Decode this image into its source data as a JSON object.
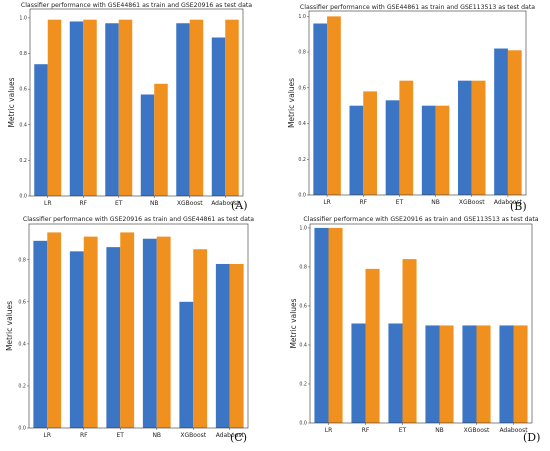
{
  "colors": {
    "series_a": "#3b75c4",
    "series_b": "#f0901e"
  },
  "chart_data": [
    {
      "type": "bar",
      "panel_label": "(A)",
      "title": "Classifier performance with GSE44861 as train and GSE20916 as test data",
      "xlabel": "",
      "ylabel": "Metric values",
      "ylim": [
        0,
        1.05
      ],
      "yticks": [
        "0.0",
        "0.2",
        "0.4",
        "0.6",
        "0.8",
        "1.0"
      ],
      "categories": [
        "LR",
        "RF",
        "ET",
        "NB",
        "XGBoost",
        "Adaboost"
      ],
      "series": [
        {
          "values": [
            0.74,
            0.98,
            0.97,
            0.57,
            0.97,
            0.89
          ]
        },
        {
          "values": [
            0.99,
            0.99,
            0.99,
            0.63,
            0.99,
            0.99
          ]
        }
      ]
    },
    {
      "type": "bar",
      "panel_label": "(B)",
      "title": "Classifier performance with GSE44861 as train and GSE113513 as test data",
      "xlabel": "",
      "ylabel": "Metric values",
      "ylim": [
        0,
        1.03
      ],
      "yticks": [
        "0.0",
        "0.2",
        "0.4",
        "0.6",
        "0.8",
        "1.0"
      ],
      "categories": [
        "LR",
        "RF",
        "ET",
        "NB",
        "XGBoost",
        "Adaboost"
      ],
      "series": [
        {
          "values": [
            0.96,
            0.5,
            0.53,
            0.5,
            0.64,
            0.82
          ]
        },
        {
          "values": [
            1.0,
            0.58,
            0.64,
            0.5,
            0.64,
            0.81
          ]
        }
      ]
    },
    {
      "type": "bar",
      "panel_label": "(C)",
      "title": "Classifier performance with GSE20916 as train and GSE44861 as test data",
      "xlabel": "",
      "ylabel": "Metric values",
      "ylim": [
        0,
        0.97
      ],
      "yticks": [
        "0.0",
        "0.2",
        "0.4",
        "0.6",
        "0.8"
      ],
      "categories": [
        "LR",
        "RF",
        "ET",
        "NB",
        "XGBoost",
        "Adaboost"
      ],
      "series": [
        {
          "values": [
            0.89,
            0.84,
            0.86,
            0.9,
            0.6,
            0.78
          ]
        },
        {
          "values": [
            0.93,
            0.91,
            0.93,
            0.91,
            0.85,
            0.78
          ]
        }
      ]
    },
    {
      "type": "bar",
      "panel_label": "(D)",
      "title": "Classifier performance with GSE20916 as train and GSE113513 as test data",
      "xlabel": "",
      "ylabel": "Metric values",
      "ylim": [
        0,
        1.02
      ],
      "yticks": [
        "0.0",
        "0.2",
        "0.4",
        "0.6",
        "0.8",
        "1.0"
      ],
      "categories": [
        "LR",
        "RF",
        "ET",
        "NB",
        "XGBoost",
        "Adaboost"
      ],
      "series": [
        {
          "values": [
            1.0,
            0.51,
            0.51,
            0.5,
            0.5,
            0.5
          ]
        },
        {
          "values": [
            1.0,
            0.79,
            0.84,
            0.5,
            0.5,
            0.5
          ]
        }
      ]
    }
  ]
}
